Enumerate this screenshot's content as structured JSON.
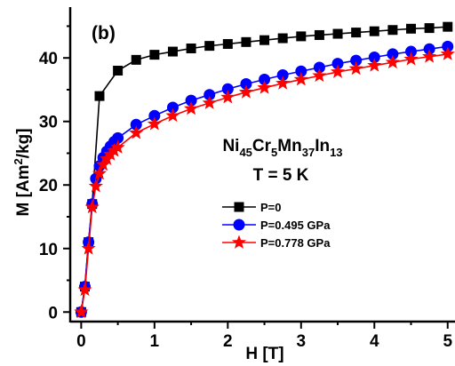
{
  "chart_data": {
    "type": "line",
    "panel_label": "(b)",
    "title": "",
    "xlabel": "H [T]",
    "ylabel_main": "M [Am",
    "ylabel_sup": "2",
    "ylabel_end": "/kg]",
    "xlim": [
      -0.15,
      5.1
    ],
    "ylim": [
      -1.5,
      48
    ],
    "x_ticks": [
      0,
      1,
      2,
      3,
      4,
      5
    ],
    "y_ticks": [
      0,
      10,
      20,
      30,
      40
    ],
    "grid": false,
    "legend_position": "center-left",
    "annotation": {
      "compound_parts": [
        {
          "t": "Ni",
          "sub": false
        },
        {
          "t": "45",
          "sub": true
        },
        {
          "t": "Cr",
          "sub": false
        },
        {
          "t": "5",
          "sub": true
        },
        {
          "t": "Mn",
          "sub": false
        },
        {
          "t": "37",
          "sub": true
        },
        {
          "t": "In",
          "sub": false
        },
        {
          "t": "13",
          "sub": true
        }
      ],
      "temperature": "T = 5 K"
    },
    "series": [
      {
        "name": "P=0",
        "color": "#000000",
        "marker": "square",
        "x": [
          0,
          0.05,
          0.1,
          0.15,
          0.25,
          0.5,
          0.75,
          1,
          1.25,
          1.5,
          1.75,
          2,
          2.25,
          2.5,
          2.75,
          3,
          3.25,
          3.5,
          3.75,
          4,
          4.25,
          4.5,
          4.75,
          5
        ],
        "y": [
          0,
          4,
          11,
          17,
          34,
          38,
          39.7,
          40.5,
          41,
          41.5,
          41.9,
          42.2,
          42.5,
          42.8,
          43.1,
          43.4,
          43.6,
          43.8,
          44,
          44.2,
          44.4,
          44.6,
          44.7,
          44.9
        ]
      },
      {
        "name": "P=0.495 GPa",
        "color": "#0000ff",
        "marker": "circle",
        "x": [
          0,
          0.05,
          0.1,
          0.15,
          0.2,
          0.25,
          0.3,
          0.35,
          0.4,
          0.45,
          0.5,
          0.75,
          1,
          1.25,
          1.5,
          1.75,
          2,
          2.25,
          2.5,
          2.75,
          3,
          3.25,
          3.5,
          3.75,
          4,
          4.25,
          4.5,
          4.75,
          5
        ],
        "y": [
          0,
          4,
          11,
          17,
          21,
          23,
          24.3,
          25.3,
          26.1,
          26.8,
          27.4,
          29.5,
          30.9,
          32.2,
          33.3,
          34.2,
          35.1,
          35.9,
          36.6,
          37.3,
          37.9,
          38.5,
          39.1,
          39.6,
          40.1,
          40.6,
          41,
          41.4,
          41.8
        ]
      },
      {
        "name": "P=0.778 GPa",
        "color": "#ff0000",
        "marker": "star",
        "x": [
          0,
          0.05,
          0.1,
          0.15,
          0.2,
          0.25,
          0.3,
          0.35,
          0.4,
          0.45,
          0.5,
          0.75,
          1,
          1.25,
          1.5,
          1.75,
          2,
          2.25,
          2.5,
          2.75,
          3,
          3.25,
          3.5,
          3.75,
          4,
          4.25,
          4.5,
          4.75,
          5
        ],
        "y": [
          0,
          3.5,
          10,
          16.5,
          19.8,
          21.8,
          23.2,
          24.1,
          24.8,
          25.4,
          25.9,
          28.2,
          29.6,
          30.9,
          32,
          32.9,
          33.8,
          34.6,
          35.3,
          36,
          36.6,
          37.2,
          37.8,
          38.3,
          38.8,
          39.3,
          39.8,
          40.2,
          40.6
        ]
      }
    ]
  }
}
